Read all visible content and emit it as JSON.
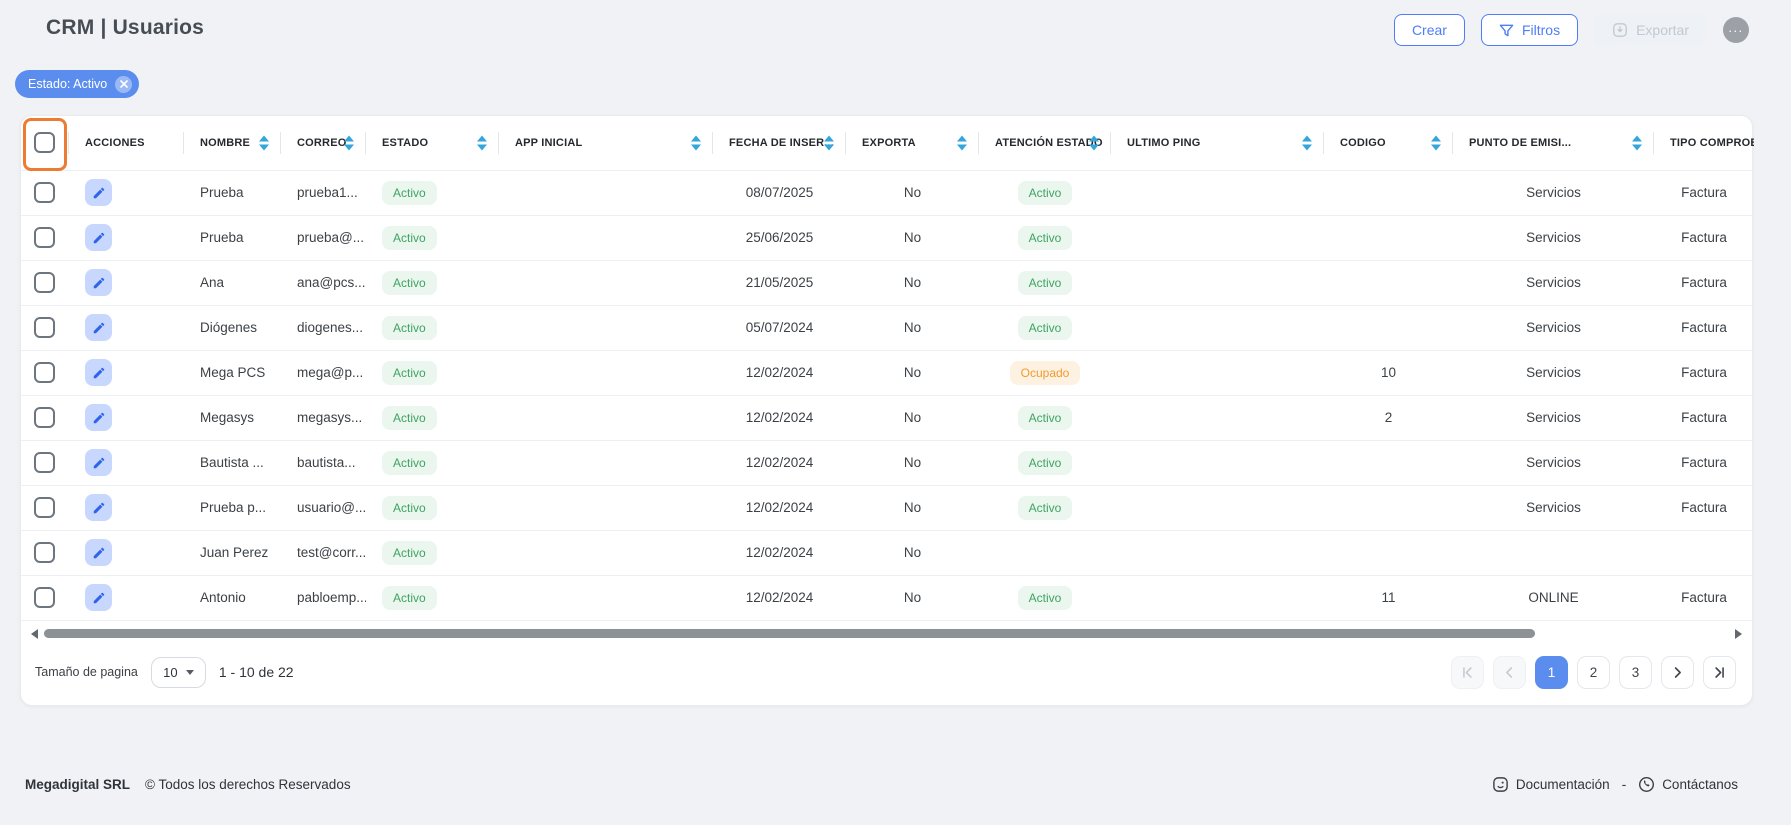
{
  "header": {
    "title": "CRM | Usuarios"
  },
  "toolbar": {
    "create_label": "Crear",
    "filters_label": "Filtros",
    "export_label": "Exportar"
  },
  "filter_chip": {
    "label": "Estado: Activo"
  },
  "table": {
    "columns": [
      {
        "id": "select",
        "label": "",
        "type": "checkbox",
        "sortable": false
      },
      {
        "id": "acciones",
        "label": "ACCIONES",
        "sortable": false
      },
      {
        "id": "nombre",
        "label": "NOMBRE",
        "sortable": true
      },
      {
        "id": "correo",
        "label": "CORREO",
        "sortable": true
      },
      {
        "id": "estado",
        "label": "ESTADO",
        "sortable": true
      },
      {
        "id": "app_inicial",
        "label": "APP INICIAL",
        "sortable": true
      },
      {
        "id": "fecha_insercion",
        "label": "FECHA DE INSER...",
        "sortable": true
      },
      {
        "id": "exporta",
        "label": "EXPORTA",
        "sortable": true
      },
      {
        "id": "atencion_estado",
        "label": "ATENCIÓN ESTADO",
        "sortable": true
      },
      {
        "id": "ultimo_ping",
        "label": "ULTIMO PING",
        "sortable": true
      },
      {
        "id": "codigo",
        "label": "CODIGO",
        "sortable": true
      },
      {
        "id": "punto_emision",
        "label": "PUNTO DE EMISI...",
        "sortable": true
      },
      {
        "id": "tipo_comprobante",
        "label": "TIPO COMPROBA.",
        "sortable": false
      }
    ],
    "rows": [
      {
        "nombre": "Prueba",
        "correo": "prueba1...",
        "estado": "Activo",
        "app_inicial": "",
        "fecha_insercion": "08/07/2025",
        "exporta": "No",
        "atencion_estado": "Activo",
        "ultimo_ping": "",
        "codigo": "",
        "punto_emision": "Servicios",
        "tipo_comprobante": "Factura"
      },
      {
        "nombre": "Prueba",
        "correo": "prueba@...",
        "estado": "Activo",
        "app_inicial": "",
        "fecha_insercion": "25/06/2025",
        "exporta": "No",
        "atencion_estado": "Activo",
        "ultimo_ping": "",
        "codigo": "",
        "punto_emision": "Servicios",
        "tipo_comprobante": "Factura"
      },
      {
        "nombre": "Ana",
        "correo": "ana@pcs...",
        "estado": "Activo",
        "app_inicial": "",
        "fecha_insercion": "21/05/2025",
        "exporta": "No",
        "atencion_estado": "Activo",
        "ultimo_ping": "",
        "codigo": "",
        "punto_emision": "Servicios",
        "tipo_comprobante": "Factura"
      },
      {
        "nombre": "Diógenes",
        "correo": "diogenes...",
        "estado": "Activo",
        "app_inicial": "",
        "fecha_insercion": "05/07/2024",
        "exporta": "No",
        "atencion_estado": "Activo",
        "ultimo_ping": "",
        "codigo": "",
        "punto_emision": "Servicios",
        "tipo_comprobante": "Factura"
      },
      {
        "nombre": "Mega PCS",
        "correo": "mega@p...",
        "estado": "Activo",
        "app_inicial": "",
        "fecha_insercion": "12/02/2024",
        "exporta": "No",
        "atencion_estado": "Ocupado",
        "ultimo_ping": "",
        "codigo": "10",
        "punto_emision": "Servicios",
        "tipo_comprobante": "Factura"
      },
      {
        "nombre": "Megasys",
        "correo": "megasys...",
        "estado": "Activo",
        "app_inicial": "",
        "fecha_insercion": "12/02/2024",
        "exporta": "No",
        "atencion_estado": "Activo",
        "ultimo_ping": "",
        "codigo": "2",
        "punto_emision": "Servicios",
        "tipo_comprobante": "Factura"
      },
      {
        "nombre": "Bautista ...",
        "correo": "bautista...",
        "estado": "Activo",
        "app_inicial": "",
        "fecha_insercion": "12/02/2024",
        "exporta": "No",
        "atencion_estado": "Activo",
        "ultimo_ping": "",
        "codigo": "",
        "punto_emision": "Servicios",
        "tipo_comprobante": "Factura"
      },
      {
        "nombre": "Prueba p...",
        "correo": "usuario@...",
        "estado": "Activo",
        "app_inicial": "",
        "fecha_insercion": "12/02/2024",
        "exporta": "No",
        "atencion_estado": "Activo",
        "ultimo_ping": "",
        "codigo": "",
        "punto_emision": "Servicios",
        "tipo_comprobante": "Factura"
      },
      {
        "nombre": "Juan Perez",
        "correo": "test@corr...",
        "estado": "Activo",
        "app_inicial": "",
        "fecha_insercion": "12/02/2024",
        "exporta": "No",
        "atencion_estado": "",
        "ultimo_ping": "",
        "codigo": "",
        "punto_emision": "",
        "tipo_comprobante": ""
      },
      {
        "nombre": "Antonio",
        "correo": "pabloemp...",
        "estado": "Activo",
        "app_inicial": "",
        "fecha_insercion": "12/02/2024",
        "exporta": "No",
        "atencion_estado": "Activo",
        "ultimo_ping": "",
        "codigo": "11",
        "punto_emision": "ONLINE",
        "tipo_comprobante": "Factura"
      }
    ],
    "status_styles": {
      "Activo": "green",
      "Ocupado": "orange"
    }
  },
  "pagination": {
    "page_size_label": "Tamaño de pagina",
    "page_size_value": "10",
    "range_text": "1 - 10 de 22",
    "pages": [
      "1",
      "2",
      "3"
    ],
    "active_page": "1",
    "first_disabled": true,
    "prev_disabled": true,
    "next_disabled": false,
    "last_disabled": false
  },
  "footer": {
    "company": "Megadigital SRL",
    "copyright": "© Todos los derechos Reservados",
    "docs_label": "Documentación",
    "separator": "-",
    "contact_label": "Contáctanos"
  },
  "colors": {
    "accent_blue": "#4e7df7",
    "chip_blue": "#5b8def",
    "sort_arrow_blue": "#33a6dd",
    "status_green_text": "#3fa463",
    "status_green_bg": "#eaf6ee",
    "status_orange_text": "#f29a2e",
    "status_orange_bg": "#fdf2e2",
    "highlight_orange": "#ec7b33",
    "disabled_button_bg": "#eef1f5"
  }
}
